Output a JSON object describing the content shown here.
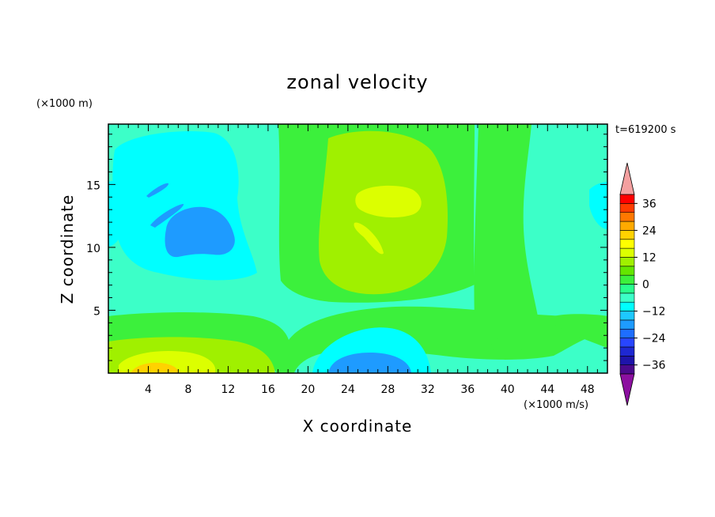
{
  "chart_data": {
    "type": "heatmap",
    "title": "zonal velocity",
    "xlabel": "X coordinate",
    "ylabel": "Z coordinate",
    "x_unit": "(×1000 m/s)",
    "y_unit": "(×1000 m)",
    "time_label": "t=619200 s",
    "xlim": [
      0,
      50
    ],
    "ylim": [
      0,
      19.8
    ],
    "x_ticks": [
      4,
      8,
      12,
      16,
      20,
      24,
      28,
      32,
      36,
      40,
      44,
      48
    ],
    "y_ticks": [
      5,
      10,
      15
    ],
    "colorbar": {
      "levels": [
        -40,
        -36,
        -32,
        -28,
        -24,
        -20,
        -16,
        -12,
        -8,
        -4,
        0,
        4,
        8,
        12,
        16,
        20,
        24,
        28,
        32,
        36,
        40
      ],
      "colors": [
        "#4b0a8c",
        "#1e14aa",
        "#1e28d2",
        "#2846ff",
        "#1e6eff",
        "#1e9bff",
        "#1ec8ff",
        "#00ffff",
        "#3cffc8",
        "#28ff8c",
        "#3cf03c",
        "#64e600",
        "#a0f000",
        "#dcff00",
        "#ffff00",
        "#ffd200",
        "#ffaa00",
        "#ff7800",
        "#ff3c00",
        "#ff0000"
      ],
      "under_color": "#8c10a0",
      "over_color": "#f4a0a0",
      "tick_labels": [
        "36",
        "24",
        "12",
        "0",
        "−12",
        "−24",
        "−36"
      ],
      "tick_values": [
        36,
        24,
        12,
        0,
        -12,
        -24,
        -36
      ]
    },
    "regions": [
      {
        "name": "upper-left-negative",
        "x_center": 9,
        "z_center": 11,
        "value": -16
      },
      {
        "name": "upper-center-positive",
        "x_center": 27,
        "z_center": 13.5,
        "value": 14
      },
      {
        "name": "bottom-left-positive",
        "x_center": 6,
        "z_center": 0.8,
        "value": 14
      },
      {
        "name": "bottom-center-negative",
        "x_center": 27,
        "z_center": 1,
        "value": -18
      },
      {
        "name": "right-positive-column",
        "x_center": 39,
        "z_center": 12,
        "value": 2
      }
    ]
  }
}
